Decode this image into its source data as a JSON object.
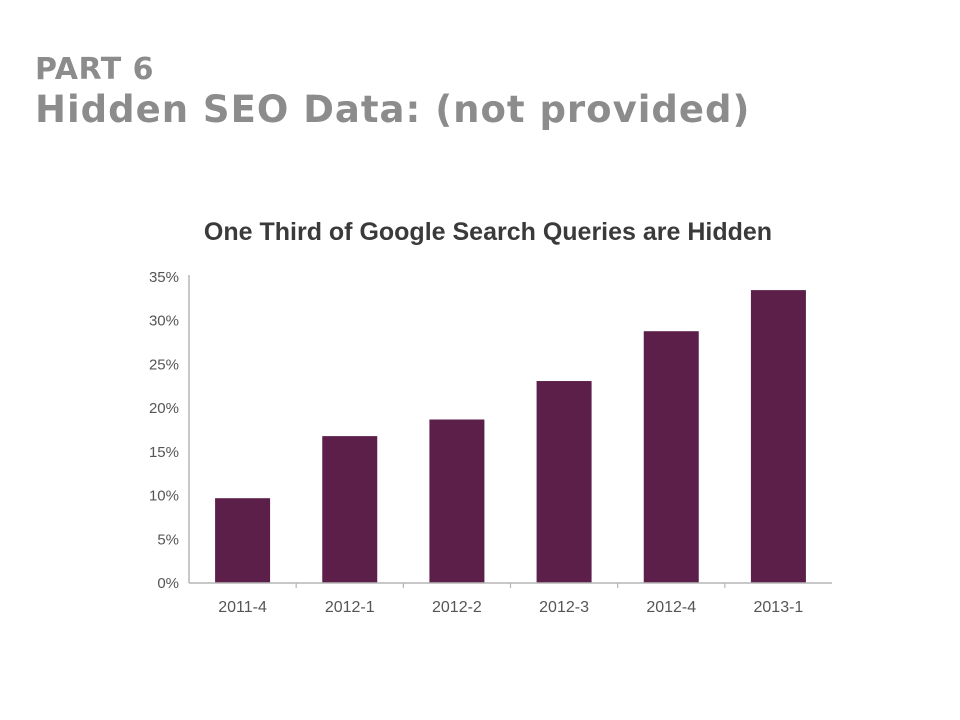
{
  "header": {
    "part": "PART 6",
    "title": "Hidden SEO Data: (not provided)"
  },
  "colors": {
    "bar": "#5c1f4a",
    "axis": "#b5b5b5",
    "heading": "#8c8c8c"
  },
  "chart_data": {
    "type": "bar",
    "title": "One Third of Google Search Queries are Hidden",
    "xlabel": "",
    "ylabel": "",
    "categories": [
      "2011-4",
      "2012-1",
      "2012-2",
      "2012-3",
      "2012-4",
      "2013-1"
    ],
    "values": [
      9.7,
      16.8,
      18.7,
      23.1,
      28.8,
      33.5
    ],
    "ylim": [
      0,
      35
    ],
    "yticks": [
      0,
      5,
      10,
      15,
      20,
      25,
      30,
      35
    ],
    "ytick_labels": [
      "0%",
      "5%",
      "10%",
      "15%",
      "20%",
      "25%",
      "30%",
      "35%"
    ],
    "grid": false,
    "legend": "none"
  }
}
